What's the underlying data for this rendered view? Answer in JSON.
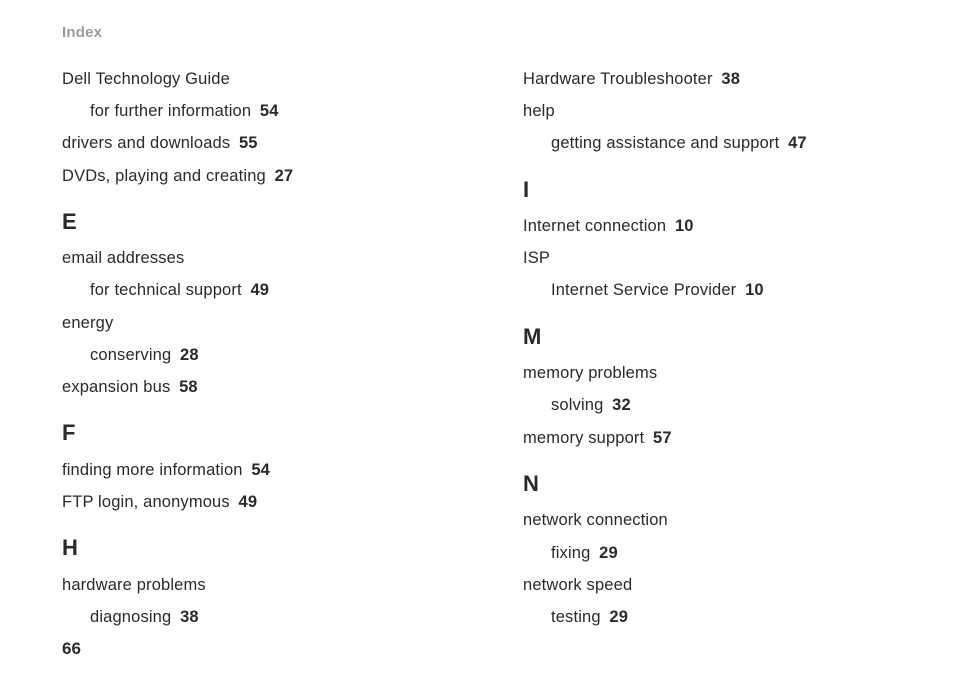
{
  "header": "Index",
  "folio": "66",
  "colors": {
    "text": "#2a2a2a",
    "header": "#9a9a9a",
    "background": "#ffffff"
  },
  "typography": {
    "body_size_pt": 12,
    "heading_size_pt": 17,
    "header_size_pt": 11,
    "body_line_height": 1.95,
    "font_family": "Helvetica Neue, Helvetica, Arial, sans-serif"
  },
  "left": [
    {
      "type": "entry",
      "text": "Dell Technology Guide"
    },
    {
      "type": "sub",
      "text": "for further information",
      "page": "54"
    },
    {
      "type": "entry",
      "text": "drivers and downloads",
      "page": "55"
    },
    {
      "type": "entry",
      "text": "DVDs, playing and creating",
      "page": "27"
    },
    {
      "type": "head",
      "text": "E"
    },
    {
      "type": "entry",
      "text": "email addresses"
    },
    {
      "type": "sub",
      "text": "for technical support",
      "page": "49"
    },
    {
      "type": "entry",
      "text": "energy"
    },
    {
      "type": "sub",
      "text": "conserving",
      "page": "28"
    },
    {
      "type": "entry",
      "text": "expansion bus",
      "page": "58"
    },
    {
      "type": "head",
      "text": "F"
    },
    {
      "type": "entry",
      "text": "finding more information",
      "page": "54"
    },
    {
      "type": "entry",
      "text": "FTP login, anonymous",
      "page": "49"
    },
    {
      "type": "head",
      "text": "H"
    },
    {
      "type": "entry",
      "text": "hardware problems"
    },
    {
      "type": "sub",
      "text": "diagnosing",
      "page": "38"
    }
  ],
  "right": [
    {
      "type": "entry",
      "text": "Hardware Troubleshooter",
      "page": "38"
    },
    {
      "type": "entry",
      "text": "help"
    },
    {
      "type": "sub",
      "text": "getting assistance and support",
      "page": "47"
    },
    {
      "type": "head",
      "text": "I"
    },
    {
      "type": "entry",
      "text": "Internet connection",
      "page": "10"
    },
    {
      "type": "entry",
      "text": "ISP"
    },
    {
      "type": "sub",
      "text": "Internet Service Provider",
      "page": "10"
    },
    {
      "type": "head",
      "text": "M"
    },
    {
      "type": "entry",
      "text": "memory problems"
    },
    {
      "type": "sub",
      "text": "solving",
      "page": "32"
    },
    {
      "type": "entry",
      "text": "memory support",
      "page": "57"
    },
    {
      "type": "head",
      "text": "N"
    },
    {
      "type": "entry",
      "text": "network connection"
    },
    {
      "type": "sub",
      "text": "fixing",
      "page": "29"
    },
    {
      "type": "entry",
      "text": "network speed"
    },
    {
      "type": "sub",
      "text": "testing",
      "page": "29"
    }
  ]
}
